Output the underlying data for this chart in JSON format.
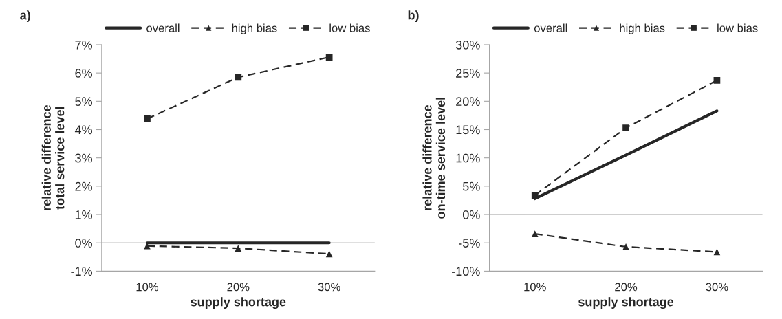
{
  "chart_data": [
    {
      "type": "line",
      "title": "a)",
      "xlabel": "supply shortage",
      "ylabel": "relative difference\ntotal service level",
      "categories": [
        "10%",
        "20%",
        "30%"
      ],
      "legend": "top",
      "grid": false,
      "series": [
        {
          "name": "overall",
          "color": "#262626",
          "values": [
            0,
            0,
            0
          ],
          "marker": "none",
          "line_style": "solid"
        },
        {
          "name": "high bias",
          "color": "#262626",
          "values": [
            -0.11,
            -0.19,
            -0.39
          ],
          "marker": "triangle",
          "line_style": "dashed"
        },
        {
          "name": "low bias",
          "color": "#262626",
          "values": [
            4.38,
            5.85,
            6.56
          ],
          "marker": "square",
          "line_style": "dashed"
        }
      ],
      "ylim": [
        -1,
        7
      ],
      "yticks": [
        {
          "value": -1,
          "label": "-1%"
        },
        {
          "value": 0,
          "label": "0%"
        },
        {
          "value": 1,
          "label": "1%"
        },
        {
          "value": 2,
          "label": "2%"
        },
        {
          "value": 3,
          "label": "3%"
        },
        {
          "value": 4,
          "label": "4%"
        },
        {
          "value": 5,
          "label": "5%"
        },
        {
          "value": 6,
          "label": "6%"
        },
        {
          "value": 7,
          "label": "7%"
        }
      ],
      "ref_lines": [
        {
          "axis": "y",
          "value": 0,
          "color": "#bfbfbf"
        }
      ]
    },
    {
      "type": "line",
      "title": "b)",
      "xlabel": "supply shortage",
      "ylabel": "relative difference\non-time service level",
      "categories": [
        "10%",
        "20%",
        "30%"
      ],
      "legend": "top",
      "grid": false,
      "series": [
        {
          "name": "overall",
          "color": "#262626",
          "values": [
            2.8,
            10.5,
            18.3
          ],
          "marker": "none",
          "line_style": "solid"
        },
        {
          "name": "high bias",
          "color": "#262626",
          "values": [
            -3.4,
            -5.7,
            -6.6
          ],
          "marker": "triangle",
          "line_style": "dashed"
        },
        {
          "name": "low bias",
          "color": "#262626",
          "values": [
            3.4,
            15.3,
            23.7
          ],
          "marker": "square",
          "line_style": "dashed"
        }
      ],
      "ylim": [
        -10,
        30
      ],
      "yticks": [
        {
          "value": -10,
          "label": "-10%"
        },
        {
          "value": -5,
          "label": "-5%"
        },
        {
          "value": 0,
          "label": "0%"
        },
        {
          "value": 5,
          "label": "5%"
        },
        {
          "value": 10,
          "label": "10%"
        },
        {
          "value": 15,
          "label": "15%"
        },
        {
          "value": 20,
          "label": "20%"
        },
        {
          "value": 25,
          "label": "25%"
        },
        {
          "value": 30,
          "label": "30%"
        }
      ],
      "ref_lines": [
        {
          "axis": "y",
          "value": 0,
          "color": "#bfbfbf"
        }
      ]
    }
  ]
}
